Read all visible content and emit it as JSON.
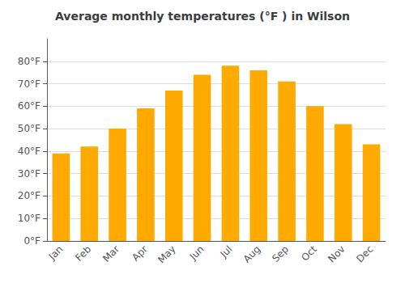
{
  "chart_data": {
    "type": "bar",
    "title": "Average monthly temperatures (°F ) in Wilson",
    "categories": [
      "Jan",
      "Feb",
      "Mar",
      "Apr",
      "May",
      "Jun",
      "Jul",
      "Aug",
      "Sep",
      "Oct",
      "Nov",
      "Dec"
    ],
    "values": [
      39,
      42,
      50,
      59,
      67,
      74,
      78,
      76,
      71,
      60,
      52,
      43
    ],
    "color": "#FFAA00",
    "ylim": [
      0,
      90
    ],
    "yticks": [
      {
        "value": 0,
        "label": "0°F"
      },
      {
        "value": 10,
        "label": "10°F"
      },
      {
        "value": 20,
        "label": "20°F"
      },
      {
        "value": 30,
        "label": "30°F"
      },
      {
        "value": 40,
        "label": "40°F"
      },
      {
        "value": 50,
        "label": "50°F"
      },
      {
        "value": 60,
        "label": "60°F"
      },
      {
        "value": 70,
        "label": "70°F"
      },
      {
        "value": 80,
        "label": "80°F"
      }
    ],
    "grid": true
  }
}
